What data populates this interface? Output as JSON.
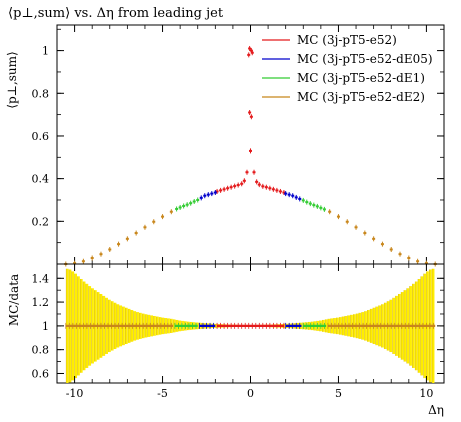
{
  "chart_data": [
    {
      "type": "scatter",
      "panel": "main",
      "title": "⟨p⊥,sum⟩ vs. Δη from leading jet",
      "ylabel": "⟨p⊥,sum⟩",
      "xlabel": "",
      "xlim": [
        -11,
        11
      ],
      "ylim": [
        0,
        1.12
      ],
      "xticks": [
        -10,
        -5,
        0,
        5,
        10
      ],
      "yticks": [
        0.2,
        0.4,
        0.6,
        0.8,
        1
      ],
      "ytick_labels": [
        "0.2",
        "0.4",
        "0.6",
        "0.8",
        "1"
      ],
      "legend_position": "top-right",
      "series": [
        {
          "name": "MC (3j-pT5-e52)",
          "color": "#e41a1c",
          "x": [
            -0.1,
            -0.05,
            0.05,
            0.1,
            -0.05,
            0.05,
            0.0,
            -0.2,
            -0.35,
            -0.5,
            -0.7,
            -0.9,
            -1.1,
            -1.3,
            -1.5,
            -1.7,
            -1.9,
            0.2,
            0.35,
            0.5,
            0.7,
            0.9,
            1.1,
            1.3,
            1.5,
            1.7,
            1.9
          ],
          "y": [
            0.98,
            1.01,
            1.0,
            0.99,
            0.71,
            0.69,
            0.53,
            0.43,
            0.39,
            0.376,
            0.37,
            0.365,
            0.36,
            0.355,
            0.35,
            0.345,
            0.34,
            0.43,
            0.385,
            0.372,
            0.364,
            0.36,
            0.355,
            0.35,
            0.345,
            0.34,
            0.335
          ]
        },
        {
          "name": "MC (3j-pT5-e52-dE05)",
          "color": "#0000cc",
          "x": [
            -2.0,
            -2.2,
            -2.4,
            -2.6,
            -2.8,
            2.0,
            2.2,
            2.4,
            2.6,
            2.8
          ],
          "y": [
            0.335,
            0.33,
            0.325,
            0.32,
            0.31,
            0.33,
            0.325,
            0.32,
            0.312,
            0.305
          ]
        },
        {
          "name": "MC (3j-pT5-e52-dE1)",
          "color": "#33cc33",
          "x": [
            -3.0,
            -3.2,
            -3.4,
            -3.6,
            -3.8,
            -4.0,
            -4.2,
            3.0,
            3.2,
            3.4,
            3.6,
            3.8,
            4.0,
            4.2
          ],
          "y": [
            0.3,
            0.293,
            0.285,
            0.278,
            0.272,
            0.265,
            0.258,
            0.298,
            0.29,
            0.283,
            0.276,
            0.27,
            0.263,
            0.256
          ]
        },
        {
          "name": "MC (3j-pT5-e52-dE2)",
          "color": "#c8861b",
          "x": [
            -4.5,
            -5.0,
            -5.5,
            -6.0,
            -6.5,
            -7.0,
            -7.5,
            -8.0,
            -8.5,
            -9.0,
            -9.5,
            -10.0,
            -10.5,
            4.5,
            5.0,
            5.5,
            6.0,
            6.5,
            7.0,
            7.5,
            8.0,
            8.5,
            9.0,
            9.5,
            10.0,
            10.5
          ],
          "y": [
            0.245,
            0.222,
            0.198,
            0.172,
            0.145,
            0.118,
            0.093,
            0.068,
            0.046,
            0.028,
            0.013,
            0.004,
            0.0,
            0.245,
            0.222,
            0.198,
            0.172,
            0.145,
            0.118,
            0.093,
            0.068,
            0.046,
            0.028,
            0.013,
            0.004,
            0.0
          ]
        }
      ]
    },
    {
      "type": "bar",
      "panel": "ratio",
      "ylabel": "MC/data",
      "xlabel": "Δη",
      "xlim": [
        -11,
        11
      ],
      "ylim": [
        0.52,
        1.52
      ],
      "xticks": [
        -10,
        -5,
        0,
        5,
        10
      ],
      "xtick_labels": [
        "-10",
        "-5",
        "0",
        "5",
        "10"
      ],
      "yticks": [
        0.6,
        0.8,
        1,
        1.2,
        1.4
      ],
      "ytick_labels": [
        "0.6",
        "0.8",
        "1",
        "1.2",
        "1.4"
      ],
      "reference_line": 1,
      "band_color": "#ffee00",
      "band_edge_color": "#c8a000",
      "band_x": [
        -10.3,
        -10.0,
        -9.5,
        -9.0,
        -8.5,
        -8.0,
        -7.5,
        -7.0,
        -6.5,
        -6.0,
        -5.5,
        -5.0,
        -4.5,
        -4.0,
        -3.5,
        -3.0,
        -2.5,
        -2.0,
        -1.5,
        -1.0,
        -0.5,
        0.0,
        0.5,
        1.0,
        1.5,
        2.0,
        2.5,
        3.0,
        3.5,
        4.0,
        4.5,
        5.0,
        5.5,
        6.0,
        6.5,
        7.0,
        7.5,
        8.0,
        8.5,
        9.0,
        9.5,
        10.0,
        10.3
      ],
      "band_halfwidth": [
        0.48,
        0.45,
        0.38,
        0.32,
        0.27,
        0.22,
        0.18,
        0.15,
        0.12,
        0.1,
        0.085,
        0.07,
        0.06,
        0.045,
        0.035,
        0.028,
        0.022,
        0.017,
        0.013,
        0.01,
        0.008,
        0.007,
        0.008,
        0.01,
        0.013,
        0.017,
        0.022,
        0.028,
        0.035,
        0.045,
        0.06,
        0.07,
        0.085,
        0.1,
        0.12,
        0.15,
        0.18,
        0.22,
        0.27,
        0.32,
        0.38,
        0.45,
        0.48
      ],
      "segments": [
        {
          "name": "MC (3j-pT5-e52)",
          "color": "#e41a1c",
          "x_from": -1.9,
          "x_to": 1.9,
          "y": 1
        },
        {
          "name": "MC (3j-pT5-e52-dE05)",
          "color": "#0000cc",
          "x_from": -2.9,
          "x_to": -2.0,
          "y": 1
        },
        {
          "name": "MC (3j-pT5-e52-dE05)",
          "color": "#0000cc",
          "x_from": 2.0,
          "x_to": 2.9,
          "y": 1
        },
        {
          "name": "MC (3j-pT5-e52-dE1)",
          "color": "#33cc33",
          "x_from": -4.3,
          "x_to": -3.0,
          "y": 1
        },
        {
          "name": "MC (3j-pT5-e52-dE1)",
          "color": "#33cc33",
          "x_from": 3.0,
          "x_to": 4.3,
          "y": 1
        },
        {
          "name": "MC (3j-pT5-e52-dE2)",
          "color": "#c8861b",
          "x_from": -10.5,
          "x_to": -4.4,
          "y": 1
        },
        {
          "name": "MC (3j-pT5-e52-dE2)",
          "color": "#c8861b",
          "x_from": 4.4,
          "x_to": 10.5,
          "y": 1
        }
      ]
    }
  ]
}
